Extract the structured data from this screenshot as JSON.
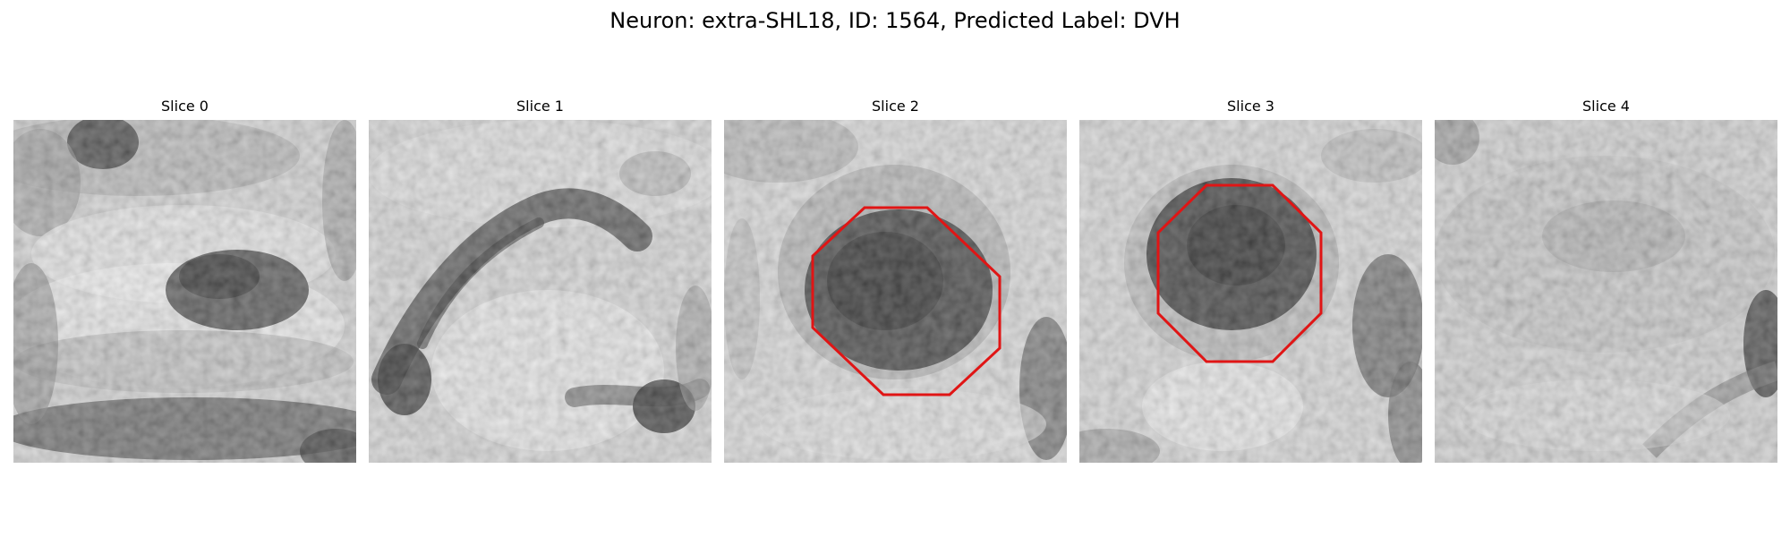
{
  "figure": {
    "title": "Neuron: extra-SHL18, ID: 1564, Predicted Label: DVH"
  },
  "panels": [
    {
      "title": "Slice 0",
      "has_outline": false,
      "outline_color": "#e01515"
    },
    {
      "title": "Slice 1",
      "has_outline": false,
      "outline_color": "#e01515"
    },
    {
      "title": "Slice 2",
      "has_outline": true,
      "outline_color": "#e01515"
    },
    {
      "title": "Slice 3",
      "has_outline": true,
      "outline_color": "#e01515"
    },
    {
      "title": "Slice 4",
      "has_outline": false,
      "outline_color": "#e01515"
    }
  ]
}
